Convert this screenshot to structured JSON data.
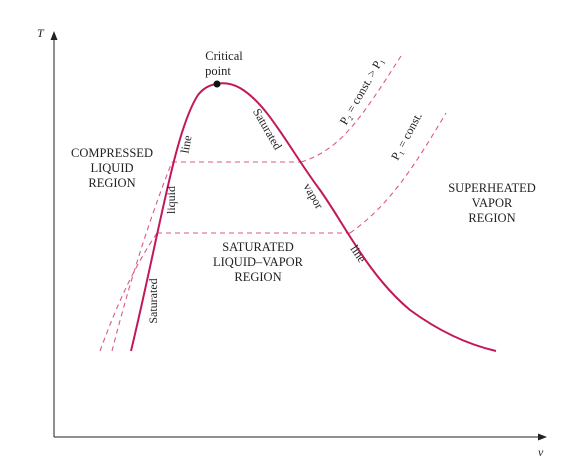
{
  "colors": {
    "dome": "#c2185b",
    "pressure_lines": "#d95a86",
    "axes": "#222222",
    "text": "#222222"
  },
  "axes": {
    "y_label": "T",
    "x_label": "v"
  },
  "critical_point": {
    "line1": "Critical",
    "line2": "point"
  },
  "regions": {
    "compressed": [
      "COMPRESSED",
      "LIQUID",
      "REGION"
    ],
    "saturated_mix": [
      "SATURATED",
      "LIQUID–VAPOR",
      "REGION"
    ],
    "superheated": [
      "SUPERHEATED",
      "VAPOR",
      "REGION"
    ]
  },
  "curve_labels": {
    "sat_liquid_1": "Saturated",
    "sat_liquid_2": "liquid",
    "sat_liquid_3": "line",
    "sat_vapor_1": "Saturated",
    "sat_vapor_2": "vapor",
    "sat_vapor_3": "line"
  },
  "pressure_labels": {
    "p2": "P₂ = const. > P₁",
    "p1": "P₁ = const."
  }
}
